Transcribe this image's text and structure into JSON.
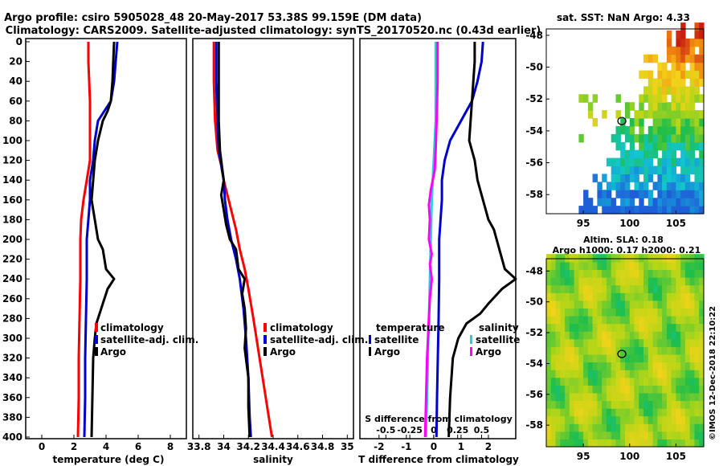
{
  "title": {
    "line1": "Argo profile: csiro 5905028_48 20-May-2017 53.38S 99.159E (DM data)",
    "line2": "Climatology: CARS2009. Satellite-adjusted climatology: synTS_20170520.nc (0.43d earlier)"
  },
  "watermark": "©IMOS 12-Dec-2018 22:10:22",
  "colors": {
    "climatology": "#ff0000",
    "satellite": "#0000cc",
    "argo": "#000000",
    "salinity_sat": "#33ccdd",
    "salinity_argo": "#ff00ff"
  },
  "chart_data": [
    {
      "id": "temperature",
      "type": "line",
      "xlabel": "temperature (deg C)",
      "ylabel": "",
      "xlim": [
        -1,
        9
      ],
      "ylim": [
        400,
        0
      ],
      "xticks": [
        "0",
        "2",
        "4",
        "6",
        "8"
      ],
      "xtick_values": [
        0,
        2,
        4,
        6,
        8
      ],
      "yticks": [
        "0",
        "20",
        "40",
        "60",
        "80",
        "100",
        "120",
        "140",
        "160",
        "180",
        "200",
        "220",
        "240",
        "260",
        "280",
        "300",
        "320",
        "340",
        "360",
        "380",
        "400"
      ],
      "ytick_values": [
        0,
        20,
        40,
        60,
        80,
        100,
        120,
        140,
        160,
        180,
        200,
        220,
        240,
        260,
        280,
        300,
        320,
        340,
        360,
        380,
        400
      ],
      "legend": [
        "climatology",
        "satellite-adj. clim.",
        "Argo"
      ],
      "series": [
        {
          "name": "climatology",
          "color": "#ff0000",
          "points": [
            [
              2.9,
              0
            ],
            [
              2.9,
              20
            ],
            [
              2.95,
              40
            ],
            [
              3.0,
              60
            ],
            [
              3.0,
              80
            ],
            [
              3.0,
              100
            ],
            [
              3.0,
              120
            ],
            [
              2.8,
              140
            ],
            [
              2.6,
              160
            ],
            [
              2.45,
              180
            ],
            [
              2.4,
              200
            ],
            [
              2.4,
              240
            ],
            [
              2.35,
              280
            ],
            [
              2.3,
              320
            ],
            [
              2.3,
              360
            ],
            [
              2.25,
              400
            ]
          ]
        },
        {
          "name": "satellite-adj. clim.",
          "color": "#0000cc",
          "points": [
            [
              4.7,
              0
            ],
            [
              4.6,
              20
            ],
            [
              4.5,
              40
            ],
            [
              4.3,
              60
            ],
            [
              3.9,
              70
            ],
            [
              3.5,
              80
            ],
            [
              3.3,
              100
            ],
            [
              3.2,
              120
            ],
            [
              3.0,
              140
            ],
            [
              3.0,
              160
            ],
            [
              2.9,
              180
            ],
            [
              2.8,
              200
            ],
            [
              2.8,
              240
            ],
            [
              2.75,
              280
            ],
            [
              2.7,
              320
            ],
            [
              2.7,
              360
            ],
            [
              2.65,
              400
            ]
          ]
        },
        {
          "name": "Argo",
          "color": "#000000",
          "points": [
            [
              4.5,
              0
            ],
            [
              4.45,
              20
            ],
            [
              4.4,
              40
            ],
            [
              4.3,
              60
            ],
            [
              4.1,
              70
            ],
            [
              3.8,
              80
            ],
            [
              3.5,
              100
            ],
            [
              3.3,
              120
            ],
            [
              3.2,
              140
            ],
            [
              3.1,
              160
            ],
            [
              3.2,
              170
            ],
            [
              3.3,
              180
            ],
            [
              3.4,
              190
            ],
            [
              3.5,
              200
            ],
            [
              3.8,
              210
            ],
            [
              4.0,
              230
            ],
            [
              4.5,
              240
            ],
            [
              4.1,
              250
            ],
            [
              3.8,
              265
            ],
            [
              3.6,
              275
            ],
            [
              3.4,
              285
            ],
            [
              3.3,
              300
            ],
            [
              3.2,
              320
            ],
            [
              3.15,
              360
            ],
            [
              3.1,
              400
            ]
          ]
        }
      ]
    },
    {
      "id": "salinity",
      "type": "line",
      "xlabel": "salinity",
      "ylabel": "",
      "xlim": [
        33.75,
        35.05
      ],
      "ylim": [
        400,
        0
      ],
      "xticks": [
        "33.8",
        "34",
        "34.2",
        "34.4",
        "34.6",
        "34.8",
        "35"
      ],
      "xtick_values": [
        33.8,
        34,
        34.2,
        34.4,
        34.6,
        34.8,
        35
      ],
      "legend": [
        "climatology",
        "satellite-adj. clim.",
        "Argo"
      ],
      "series": [
        {
          "name": "climatology",
          "color": "#ff0000",
          "points": [
            [
              33.92,
              0
            ],
            [
              33.92,
              40
            ],
            [
              33.93,
              80
            ],
            [
              33.95,
              110
            ],
            [
              33.98,
              125
            ],
            [
              34.0,
              140
            ],
            [
              34.03,
              155
            ],
            [
              34.06,
              170
            ],
            [
              34.1,
              190
            ],
            [
              34.13,
              210
            ],
            [
              34.17,
              230
            ],
            [
              34.2,
              250
            ],
            [
              34.24,
              280
            ],
            [
              34.29,
              320
            ],
            [
              34.34,
              360
            ],
            [
              34.39,
              400
            ]
          ]
        },
        {
          "name": "satellite-adj. clim.",
          "color": "#0000cc",
          "points": [
            [
              33.94,
              0
            ],
            [
              33.94,
              40
            ],
            [
              33.95,
              80
            ],
            [
              33.96,
              110
            ],
            [
              33.98,
              125
            ],
            [
              34.0,
              140
            ],
            [
              34.01,
              160
            ],
            [
              34.03,
              180
            ],
            [
              34.06,
              200
            ],
            [
              34.1,
              220
            ],
            [
              34.13,
              240
            ],
            [
              34.16,
              270
            ],
            [
              34.18,
              300
            ],
            [
              34.2,
              340
            ],
            [
              34.21,
              380
            ],
            [
              34.22,
              400
            ]
          ]
        },
        {
          "name": "Argo",
          "color": "#000000",
          "points": [
            [
              33.96,
              0
            ],
            [
              33.96,
              40
            ],
            [
              33.96,
              80
            ],
            [
              33.97,
              110
            ],
            [
              33.99,
              130
            ],
            [
              34.0,
              140
            ],
            [
              33.98,
              155
            ],
            [
              34.0,
              170
            ],
            [
              34.02,
              185
            ],
            [
              34.05,
              200
            ],
            [
              34.1,
              210
            ],
            [
              34.12,
              230
            ],
            [
              34.17,
              240
            ],
            [
              34.15,
              255
            ],
            [
              34.17,
              270
            ],
            [
              34.18,
              290
            ],
            [
              34.17,
              310
            ],
            [
              34.2,
              340
            ],
            [
              34.2,
              370
            ],
            [
              34.21,
              400
            ]
          ]
        }
      ]
    },
    {
      "id": "difference",
      "type": "line",
      "xlabel": "T difference from climatology",
      "x2label": "S difference from climatology",
      "xlim": [
        -2.7,
        3.0
      ],
      "ylim": [
        400,
        0
      ],
      "xticks": [
        "-2",
        "-1",
        "0",
        "1",
        "2"
      ],
      "xtick_values": [
        -2,
        -1,
        0,
        1,
        2
      ],
      "x2ticks": [
        "-0.5",
        "-0.25",
        "0",
        "0.25",
        "0.5"
      ],
      "x2tick_values": [
        -0.5,
        -0.25,
        0,
        0.25,
        0.5
      ],
      "legend_left_title": "temperature",
      "legend_left": [
        "satellite",
        "Argo"
      ],
      "legend_right_title": "salinity",
      "legend_right": [
        "satellite",
        "Argo"
      ],
      "series": [
        {
          "name": "temperature satellite",
          "color": "#0000cc",
          "points": [
            [
              1.8,
              0
            ],
            [
              1.75,
              20
            ],
            [
              1.6,
              40
            ],
            [
              1.4,
              60
            ],
            [
              1.0,
              80
            ],
            [
              0.6,
              100
            ],
            [
              0.4,
              120
            ],
            [
              0.3,
              140
            ],
            [
              0.3,
              160
            ],
            [
              0.25,
              180
            ],
            [
              0.2,
              200
            ],
            [
              0.2,
              240
            ],
            [
              0.18,
              280
            ],
            [
              0.15,
              320
            ],
            [
              0.12,
              360
            ],
            [
              0.1,
              400
            ]
          ]
        },
        {
          "name": "temperature Argo",
          "color": "#000000",
          "points": [
            [
              1.5,
              0
            ],
            [
              1.5,
              20
            ],
            [
              1.45,
              40
            ],
            [
              1.4,
              60
            ],
            [
              1.35,
              80
            ],
            [
              1.3,
              100
            ],
            [
              1.5,
              120
            ],
            [
              1.6,
              140
            ],
            [
              1.8,
              160
            ],
            [
              1.9,
              170
            ],
            [
              2.0,
              180
            ],
            [
              2.2,
              190
            ],
            [
              2.3,
              200
            ],
            [
              2.4,
              210
            ],
            [
              2.6,
              230
            ],
            [
              3.0,
              240
            ],
            [
              2.5,
              250
            ],
            [
              2.0,
              265
            ],
            [
              1.7,
              275
            ],
            [
              1.2,
              285
            ],
            [
              0.9,
              300
            ],
            [
              0.7,
              320
            ],
            [
              0.6,
              360
            ],
            [
              0.55,
              400
            ]
          ]
        },
        {
          "name": "salinity satellite",
          "color": "#33ccdd",
          "points": [
            [
              0.02,
              0
            ],
            [
              0.02,
              40
            ],
            [
              0.02,
              80
            ],
            [
              0.0,
              120
            ],
            [
              -0.02,
              160
            ],
            [
              -0.03,
              200
            ],
            [
              -0.04,
              240
            ],
            [
              -0.05,
              280
            ],
            [
              -0.06,
              320
            ],
            [
              -0.07,
              360
            ],
            [
              -0.08,
              400
            ]
          ]
        },
        {
          "name": "salinity Argo",
          "color": "#ff00ff",
          "points": [
            [
              0.04,
              0
            ],
            [
              0.04,
              40
            ],
            [
              0.03,
              80
            ],
            [
              0.02,
              110
            ],
            [
              0.01,
              130
            ],
            [
              -0.03,
              150
            ],
            [
              -0.05,
              165
            ],
            [
              -0.04,
              180
            ],
            [
              -0.05,
              200
            ],
            [
              -0.02,
              215
            ],
            [
              -0.04,
              225
            ],
            [
              -0.02,
              240
            ],
            [
              -0.04,
              260
            ],
            [
              -0.05,
              280
            ],
            [
              -0.07,
              320
            ],
            [
              -0.08,
              360
            ],
            [
              -0.09,
              400
            ]
          ]
        }
      ]
    },
    {
      "id": "sst_map",
      "type": "heatmap",
      "title": "sat. SST: NaN Argo: 4.33",
      "xlim": [
        91,
        108
      ],
      "ylim": [
        -59.2,
        -47.6
      ],
      "xticks": [
        "95",
        "100",
        "105"
      ],
      "xtick_values": [
        95,
        100,
        105
      ],
      "yticks": [
        "-48",
        "-50",
        "-52",
        "-54",
        "-56",
        "-58"
      ],
      "ytick_values": [
        -48,
        -50,
        -52,
        -54,
        -56,
        -58
      ],
      "marker": {
        "lon": 99.159,
        "lat": -53.38
      }
    },
    {
      "id": "sla_map",
      "type": "heatmap",
      "title": "Altim. SLA: 0.18",
      "subtitle": "Argo h1000: 0.17 h2000: 0.21",
      "xlim": [
        91,
        108
      ],
      "ylim": [
        -59.4,
        -47.2
      ],
      "xticks": [
        "95",
        "100",
        "105"
      ],
      "xtick_values": [
        95,
        100,
        105
      ],
      "yticks": [
        "-48",
        "-50",
        "-52",
        "-54",
        "-56",
        "-58"
      ],
      "ytick_values": [
        -48,
        -50,
        -52,
        -54,
        -56,
        -58
      ],
      "marker": {
        "lon": 99.159,
        "lat": -53.38
      }
    }
  ]
}
